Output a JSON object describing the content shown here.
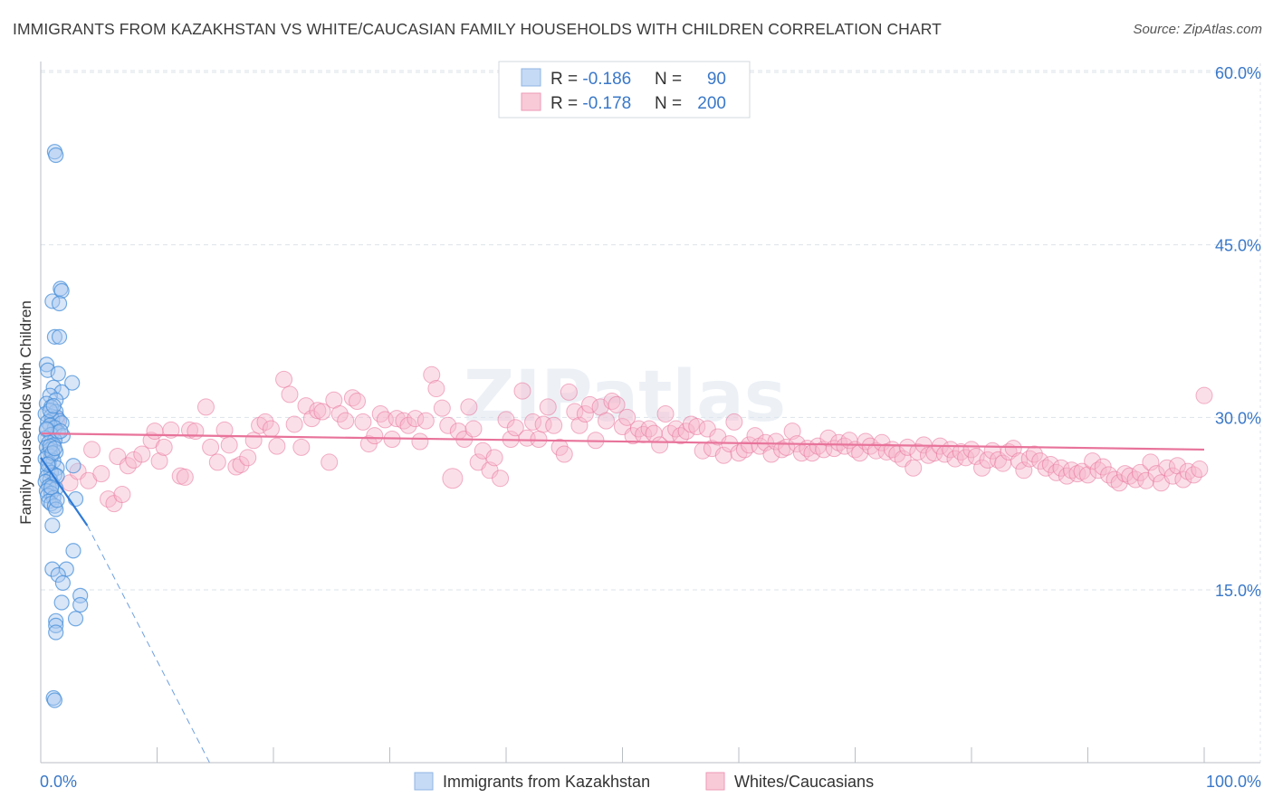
{
  "title": "IMMIGRANTS FROM KAZAKHSTAN VS WHITE/CAUCASIAN FAMILY HOUSEHOLDS WITH CHILDREN CORRELATION CHART",
  "source": "Source: ZipAtlas.com",
  "watermark": "ZIPatlas",
  "legend_box": {
    "rows": [
      {
        "r_label": "R = ",
        "r_value": "-0.186",
        "n_label": "N = ",
        "n_value": "90"
      },
      {
        "r_label": "R = ",
        "r_value": "-0.178",
        "n_label": "N = ",
        "n_value": "200"
      }
    ]
  },
  "colors": {
    "blue": "#4a90d9",
    "blue_fill": "#a9c8f0",
    "pink": "#e8739a",
    "pink_fill": "#f6b8cc",
    "value_text": "#3a78c8",
    "grid": "#dde3ea"
  },
  "chart_data": {
    "type": "scatter",
    "title": "IMMIGRANTS FROM KAZAKHSTAN VS WHITE/CAUCASIAN FAMILY HOUSEHOLDS WITH CHILDREN CORRELATION CHART",
    "xlabel": "",
    "ylabel": "Family Households with Children",
    "xlim": [
      0,
      100
    ],
    "ylim": [
      0,
      63
    ],
    "x_tick_labels": [
      "0.0%",
      "100.0%"
    ],
    "y_ticks": [
      15,
      30,
      45,
      60
    ],
    "y_tick_labels": [
      "15.0%",
      "30.0%",
      "45.0%",
      "60.0%"
    ],
    "grid": true,
    "legend_position": "bottom-center",
    "series": [
      {
        "name": "Immigrants from Kazakhstan",
        "color": "#4a90d9",
        "r": -0.186,
        "n": 90,
        "trend": {
          "x0": 0,
          "y0": 26.5,
          "x1": 4,
          "y1": 20.6,
          "dash_to_x": 14.5,
          "dash_to_y": 0
        },
        "points": [
          [
            1.2,
            53.1
          ],
          [
            1.3,
            52.8
          ],
          [
            1.7,
            41.2
          ],
          [
            1.8,
            41.0
          ],
          [
            1.0,
            40.1
          ],
          [
            1.6,
            39.9
          ],
          [
            1.2,
            37.0
          ],
          [
            1.6,
            37.0
          ],
          [
            0.5,
            34.6
          ],
          [
            0.6,
            34.1
          ],
          [
            1.5,
            33.8
          ],
          [
            2.7,
            33.0
          ],
          [
            1.1,
            32.6
          ],
          [
            1.8,
            32.2
          ],
          [
            0.8,
            31.9
          ],
          [
            1.3,
            31.5
          ],
          [
            0.5,
            31.2
          ],
          [
            0.9,
            30.9
          ],
          [
            1.3,
            30.5
          ],
          [
            0.4,
            30.3
          ],
          [
            0.9,
            30.1
          ],
          [
            1.4,
            30.0
          ],
          [
            1.0,
            29.8
          ],
          [
            1.6,
            29.7
          ],
          [
            0.6,
            29.6
          ],
          [
            1.8,
            29.5
          ],
          [
            0.8,
            29.3
          ],
          [
            1.2,
            29.1
          ],
          [
            0.5,
            28.9
          ],
          [
            1.5,
            28.7
          ],
          [
            0.9,
            28.5
          ],
          [
            1.9,
            28.4
          ],
          [
            0.4,
            28.2
          ],
          [
            1.2,
            28.0
          ],
          [
            0.7,
            27.8
          ],
          [
            1.1,
            27.6
          ],
          [
            0.5,
            27.4
          ],
          [
            0.8,
            27.2
          ],
          [
            1.3,
            27.0
          ],
          [
            0.6,
            26.8
          ],
          [
            0.9,
            26.6
          ],
          [
            0.4,
            26.4
          ],
          [
            1.1,
            26.2
          ],
          [
            0.7,
            26.0
          ],
          [
            2.8,
            25.8
          ],
          [
            1.4,
            25.6
          ],
          [
            0.6,
            25.4
          ],
          [
            0.9,
            25.2
          ],
          [
            1.2,
            25.0
          ],
          [
            0.5,
            24.8
          ],
          [
            0.8,
            24.6
          ],
          [
            0.4,
            24.4
          ],
          [
            1.0,
            24.2
          ],
          [
            0.7,
            24.0
          ],
          [
            1.3,
            23.8
          ],
          [
            0.5,
            23.6
          ],
          [
            0.9,
            23.4
          ],
          [
            0.6,
            23.2
          ],
          [
            1.1,
            23.0
          ],
          [
            3.0,
            22.9
          ],
          [
            0.7,
            22.7
          ],
          [
            0.9,
            22.5
          ],
          [
            1.2,
            22.3
          ],
          [
            1.3,
            22.0
          ],
          [
            1.0,
            20.6
          ],
          [
            2.8,
            18.4
          ],
          [
            1.0,
            16.8
          ],
          [
            2.2,
            16.8
          ],
          [
            1.5,
            16.3
          ],
          [
            1.9,
            15.6
          ],
          [
            3.4,
            14.5
          ],
          [
            1.8,
            13.9
          ],
          [
            3.4,
            13.7
          ],
          [
            3.0,
            12.5
          ],
          [
            1.3,
            12.3
          ],
          [
            1.3,
            11.9
          ],
          [
            1.3,
            11.3
          ],
          [
            1.1,
            5.6
          ],
          [
            1.2,
            5.4
          ],
          [
            0.8,
            27.5
          ],
          [
            1.0,
            26.9
          ],
          [
            0.6,
            25.9
          ],
          [
            1.4,
            24.9
          ],
          [
            0.9,
            23.9
          ],
          [
            1.2,
            27.3
          ],
          [
            0.5,
            29.0
          ],
          [
            1.7,
            28.8
          ],
          [
            0.8,
            30.6
          ],
          [
            1.1,
            31.0
          ],
          [
            1.4,
            22.8
          ]
        ]
      },
      {
        "name": "Whites/Caucasians",
        "color": "#e8739a",
        "r": -0.178,
        "n": 200,
        "trend": {
          "x0": 0,
          "y0": 28.6,
          "x1": 100,
          "y1": 27.2
        },
        "points": [
          [
            1.4,
            29.8
          ],
          [
            2.5,
            24.3
          ],
          [
            3.2,
            25.3
          ],
          [
            4.1,
            24.5
          ],
          [
            4.4,
            27.2
          ],
          [
            5.2,
            25.1
          ],
          [
            5.8,
            22.9
          ],
          [
            6.3,
            22.5
          ],
          [
            6.6,
            26.6
          ],
          [
            7.0,
            23.3
          ],
          [
            7.5,
            25.8
          ],
          [
            8.0,
            26.3
          ],
          [
            8.7,
            26.8
          ],
          [
            9.5,
            28.0
          ],
          [
            9.8,
            28.8
          ],
          [
            10.2,
            26.2
          ],
          [
            10.6,
            27.4
          ],
          [
            11.2,
            28.9
          ],
          [
            12.0,
            24.9
          ],
          [
            12.4,
            24.8
          ],
          [
            12.8,
            28.9
          ],
          [
            13.3,
            28.8
          ],
          [
            14.2,
            30.9
          ],
          [
            14.6,
            27.4
          ],
          [
            15.2,
            26.1
          ],
          [
            15.8,
            28.9
          ],
          [
            16.2,
            27.6
          ],
          [
            16.8,
            25.7
          ],
          [
            17.2,
            25.9
          ],
          [
            17.8,
            26.5
          ],
          [
            18.3,
            28.0
          ],
          [
            18.8,
            29.3
          ],
          [
            19.3,
            29.6
          ],
          [
            19.8,
            29.0
          ],
          [
            20.3,
            27.5
          ],
          [
            20.9,
            33.3
          ],
          [
            21.4,
            32.0
          ],
          [
            21.8,
            29.4
          ],
          [
            22.4,
            27.4
          ],
          [
            22.8,
            31.0
          ],
          [
            23.3,
            29.9
          ],
          [
            23.8,
            30.6
          ],
          [
            24.2,
            30.5
          ],
          [
            24.8,
            26.1
          ],
          [
            25.2,
            31.5
          ],
          [
            25.7,
            30.3
          ],
          [
            26.2,
            29.7
          ],
          [
            26.8,
            31.7
          ],
          [
            27.2,
            31.4
          ],
          [
            27.7,
            29.6
          ],
          [
            28.2,
            27.7
          ],
          [
            28.7,
            28.4
          ],
          [
            29.2,
            30.3
          ],
          [
            29.6,
            29.8
          ],
          [
            30.2,
            28.1
          ],
          [
            30.6,
            29.9
          ],
          [
            31.2,
            29.7
          ],
          [
            31.6,
            29.3
          ],
          [
            32.2,
            29.9
          ],
          [
            32.6,
            27.9
          ],
          [
            33.1,
            29.7
          ],
          [
            33.6,
            33.7
          ],
          [
            34.0,
            32.5
          ],
          [
            34.5,
            30.8
          ],
          [
            35.0,
            29.3
          ],
          [
            35.4,
            24.7
          ],
          [
            35.9,
            28.8
          ],
          [
            36.4,
            28.1
          ],
          [
            36.8,
            30.9
          ],
          [
            37.2,
            29.0
          ],
          [
            37.6,
            26.1
          ],
          [
            38.0,
            27.1
          ],
          [
            38.6,
            25.4
          ],
          [
            39.0,
            26.5
          ],
          [
            39.5,
            24.7
          ],
          [
            40.0,
            29.8
          ],
          [
            40.4,
            28.1
          ],
          [
            40.8,
            29.1
          ],
          [
            41.4,
            32.3
          ],
          [
            41.8,
            28.2
          ],
          [
            42.3,
            29.6
          ],
          [
            42.8,
            28.1
          ],
          [
            43.2,
            29.4
          ],
          [
            43.6,
            30.9
          ],
          [
            44.1,
            29.3
          ],
          [
            44.6,
            27.4
          ],
          [
            45.0,
            26.8
          ],
          [
            45.4,
            32.2
          ],
          [
            45.9,
            30.5
          ],
          [
            46.3,
            29.3
          ],
          [
            46.8,
            30.3
          ],
          [
            47.2,
            31.1
          ],
          [
            47.7,
            28.0
          ],
          [
            48.1,
            30.9
          ],
          [
            48.6,
            29.7
          ],
          [
            49.1,
            31.4
          ],
          [
            49.5,
            31.1
          ],
          [
            50.0,
            29.2
          ],
          [
            50.4,
            30.0
          ],
          [
            50.9,
            28.4
          ],
          [
            51.4,
            29.0
          ],
          [
            51.8,
            28.5
          ],
          [
            52.3,
            29.0
          ],
          [
            52.7,
            28.6
          ],
          [
            53.2,
            27.6
          ],
          [
            53.7,
            30.3
          ],
          [
            54.1,
            28.6
          ],
          [
            54.6,
            29.0
          ],
          [
            55.0,
            28.4
          ],
          [
            55.5,
            28.8
          ],
          [
            55.9,
            29.4
          ],
          [
            56.4,
            29.2
          ],
          [
            56.9,
            27.1
          ],
          [
            57.3,
            29.0
          ],
          [
            57.7,
            27.3
          ],
          [
            58.2,
            28.3
          ],
          [
            58.7,
            26.7
          ],
          [
            59.2,
            27.7
          ],
          [
            59.6,
            29.6
          ],
          [
            60.0,
            26.9
          ],
          [
            60.5,
            27.2
          ],
          [
            60.9,
            27.6
          ],
          [
            61.4,
            28.4
          ],
          [
            61.8,
            27.5
          ],
          [
            62.3,
            27.8
          ],
          [
            62.8,
            26.8
          ],
          [
            63.2,
            27.9
          ],
          [
            63.7,
            27.2
          ],
          [
            64.1,
            27.4
          ],
          [
            64.6,
            28.8
          ],
          [
            65.0,
            27.7
          ],
          [
            65.4,
            26.9
          ],
          [
            65.9,
            27.3
          ],
          [
            66.3,
            26.9
          ],
          [
            66.8,
            27.5
          ],
          [
            67.3,
            27.2
          ],
          [
            67.7,
            28.2
          ],
          [
            68.2,
            27.3
          ],
          [
            68.6,
            27.8
          ],
          [
            69.1,
            27.5
          ],
          [
            69.5,
            28.0
          ],
          [
            70.0,
            27.2
          ],
          [
            70.4,
            26.9
          ],
          [
            70.9,
            27.9
          ],
          [
            71.3,
            27.5
          ],
          [
            71.8,
            27.1
          ],
          [
            72.3,
            27.8
          ],
          [
            72.7,
            27.0
          ],
          [
            73.2,
            27.2
          ],
          [
            73.6,
            26.8
          ],
          [
            74.1,
            26.4
          ],
          [
            74.5,
            27.4
          ],
          [
            75.0,
            25.6
          ],
          [
            75.4,
            27.0
          ],
          [
            75.9,
            27.6
          ],
          [
            76.3,
            26.7
          ],
          [
            76.8,
            26.9
          ],
          [
            77.3,
            27.5
          ],
          [
            77.7,
            26.8
          ],
          [
            78.2,
            27.2
          ],
          [
            78.6,
            26.4
          ],
          [
            79.1,
            27.0
          ],
          [
            79.5,
            26.5
          ],
          [
            80.0,
            27.2
          ],
          [
            80.4,
            26.6
          ],
          [
            80.9,
            25.6
          ],
          [
            81.4,
            26.3
          ],
          [
            81.8,
            27.1
          ],
          [
            82.3,
            26.3
          ],
          [
            82.7,
            26.0
          ],
          [
            83.2,
            27.0
          ],
          [
            83.6,
            27.3
          ],
          [
            84.1,
            26.2
          ],
          [
            84.5,
            25.4
          ],
          [
            85.0,
            26.4
          ],
          [
            85.4,
            26.8
          ],
          [
            85.9,
            26.2
          ],
          [
            86.4,
            25.6
          ],
          [
            86.8,
            25.9
          ],
          [
            87.3,
            25.2
          ],
          [
            87.7,
            25.6
          ],
          [
            88.2,
            24.9
          ],
          [
            88.6,
            25.4
          ],
          [
            89.1,
            25.1
          ],
          [
            89.5,
            25.3
          ],
          [
            90.0,
            25.0
          ],
          [
            90.4,
            26.2
          ],
          [
            90.9,
            25.4
          ],
          [
            91.3,
            25.7
          ],
          [
            91.8,
            25.0
          ],
          [
            92.3,
            24.6
          ],
          [
            92.7,
            24.3
          ],
          [
            93.2,
            25.1
          ],
          [
            93.6,
            24.9
          ],
          [
            94.1,
            24.6
          ],
          [
            94.5,
            25.2
          ],
          [
            95.0,
            24.5
          ],
          [
            95.4,
            26.1
          ],
          [
            95.9,
            25.1
          ],
          [
            96.3,
            24.3
          ],
          [
            96.8,
            25.6
          ],
          [
            97.3,
            24.9
          ],
          [
            97.7,
            25.8
          ],
          [
            98.2,
            24.6
          ],
          [
            98.6,
            25.3
          ],
          [
            99.1,
            25.0
          ],
          [
            99.6,
            25.5
          ],
          [
            100.0,
            31.9
          ]
        ]
      }
    ]
  }
}
